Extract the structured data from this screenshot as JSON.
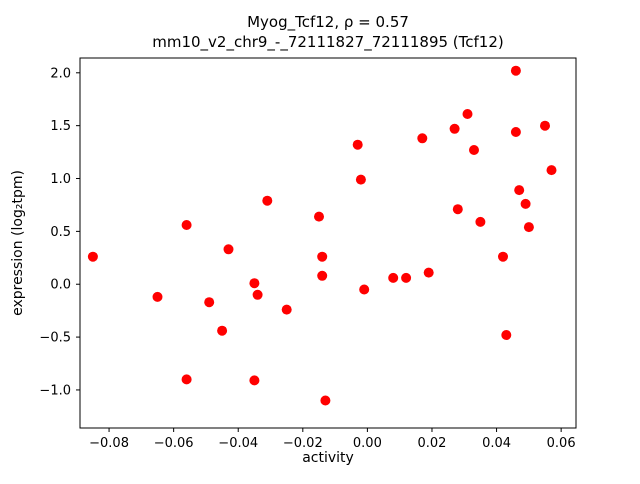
{
  "figure": {
    "background": "#ffffff"
  },
  "chart_data": {
    "type": "scatter",
    "title": "Myog_Tcf12, ρ = 0.57",
    "subtitle": "mm10_v2_chr9_-_72111827_72111895 (Tcf12)",
    "xlabel": "activity",
    "ylabel": "expression (log₂tpm)",
    "marker_color": "#ff0000",
    "marker_radius": 5,
    "xlim": [
      -0.089,
      0.0646
    ],
    "ylim": [
      -1.36,
      2.14
    ],
    "grid": false,
    "legend": "none",
    "xticks": {
      "values": [
        -0.08,
        -0.06,
        -0.04,
        -0.02,
        0.0,
        0.02,
        0.04,
        0.06
      ],
      "labels": [
        "−0.08",
        "−0.06",
        "−0.04",
        "−0.02",
        "0.00",
        "0.02",
        "0.04",
        "0.06"
      ]
    },
    "yticks": {
      "values": [
        -1.0,
        -0.5,
        0.0,
        0.5,
        1.0,
        1.5,
        2.0
      ],
      "labels": [
        "−1.0",
        "−0.5",
        "0.0",
        "0.5",
        "1.0",
        "1.5",
        "2.0"
      ]
    },
    "points": [
      [
        -0.085,
        0.26
      ],
      [
        -0.065,
        -0.12
      ],
      [
        -0.056,
        0.56
      ],
      [
        -0.056,
        -0.9
      ],
      [
        -0.049,
        -0.17
      ],
      [
        -0.045,
        -0.44
      ],
      [
        -0.043,
        0.33
      ],
      [
        -0.035,
        0.01
      ],
      [
        -0.034,
        -0.1
      ],
      [
        -0.035,
        -0.91
      ],
      [
        -0.031,
        0.79
      ],
      [
        -0.025,
        -0.24
      ],
      [
        -0.015,
        0.64
      ],
      [
        -0.014,
        0.26
      ],
      [
        -0.014,
        0.08
      ],
      [
        -0.013,
        -1.1
      ],
      [
        -0.003,
        1.32
      ],
      [
        -0.002,
        0.99
      ],
      [
        -0.001,
        -0.05
      ],
      [
        0.008,
        0.06
      ],
      [
        0.012,
        0.06
      ],
      [
        0.017,
        1.38
      ],
      [
        0.019,
        0.11
      ],
      [
        0.027,
        1.47
      ],
      [
        0.028,
        0.71
      ],
      [
        0.031,
        1.61
      ],
      [
        0.033,
        1.27
      ],
      [
        0.035,
        0.59
      ],
      [
        0.042,
        0.26
      ],
      [
        0.043,
        -0.48
      ],
      [
        0.046,
        2.02
      ],
      [
        0.046,
        1.44
      ],
      [
        0.047,
        0.89
      ],
      [
        0.049,
        0.76
      ],
      [
        0.05,
        0.54
      ],
      [
        0.055,
        1.5
      ],
      [
        0.057,
        1.08
      ]
    ]
  }
}
